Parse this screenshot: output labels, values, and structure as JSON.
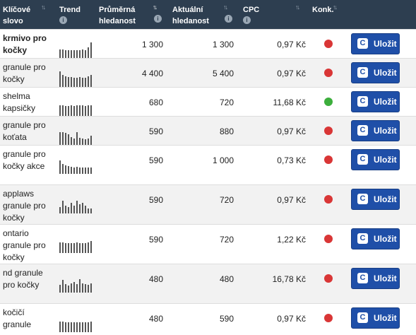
{
  "header": {
    "keyword": "Klíčové slovo",
    "trend": "Trend",
    "avg_search": "Průměrná hledanost",
    "cur_search": "Aktuální hledanost",
    "cpc": "CPC",
    "competition": "Konk.",
    "info_glyph": "i",
    "sort_idle": "↑↓",
    "sort_active": "↑↓"
  },
  "colors": {
    "header_bg": "#2d3e50",
    "button": "#1f4fa8",
    "red": "#d93636",
    "green": "#3cae3c"
  },
  "button_label": "Uložit",
  "button_icon": "c-icon",
  "rows": [
    {
      "keyword": "krmivo pro kočky",
      "bold": true,
      "avg": "1 300",
      "cur": "1 300",
      "cpc": "0,97 Kč",
      "competition": "red",
      "trend": [
        0.55,
        0.55,
        0.5,
        0.5,
        0.5,
        0.5,
        0.5,
        0.5,
        0.55,
        0.5,
        0.7,
        1.0
      ]
    },
    {
      "keyword": "granule pro kočky",
      "bold": false,
      "avg": "4 400",
      "cur": "5 400",
      "cpc": "0,97 Kč",
      "competition": "red",
      "trend": [
        1.0,
        0.75,
        0.7,
        0.65,
        0.65,
        0.6,
        0.6,
        0.65,
        0.6,
        0.6,
        0.7,
        0.75
      ]
    },
    {
      "keyword": "shelma kapsičky",
      "bold": false,
      "avg": "680",
      "cur": "720",
      "cpc": "11,68 Kč",
      "competition": "green",
      "trend": [
        0.7,
        0.7,
        0.65,
        0.65,
        0.7,
        0.65,
        0.7,
        0.7,
        0.7,
        0.65,
        0.7,
        0.7
      ]
    },
    {
      "keyword": "granule pro koťata",
      "bold": false,
      "avg": "590",
      "cur": "880",
      "cpc": "0,97 Kč",
      "competition": "red",
      "trend": [
        0.8,
        0.8,
        0.75,
        0.7,
        0.5,
        0.4,
        0.8,
        0.45,
        0.4,
        0.35,
        0.4,
        0.6
      ]
    },
    {
      "keyword": "granule pro kočky akce",
      "bold": false,
      "avg": "590",
      "cur": "1 000",
      "cpc": "0,73 Kč",
      "competition": "red",
      "trend": [
        0.85,
        0.65,
        0.55,
        0.5,
        0.45,
        0.4,
        0.45,
        0.4,
        0.4,
        0.4,
        0.4,
        0.4
      ]
    },
    {
      "keyword": "applaws granule pro kočky",
      "bold": false,
      "avg": "590",
      "cur": "720",
      "cpc": "0,97 Kč",
      "competition": "red",
      "trend": [
        0.4,
        0.8,
        0.5,
        0.4,
        0.7,
        0.5,
        0.8,
        0.6,
        0.7,
        0.5,
        0.3,
        0.3
      ]
    },
    {
      "keyword": "ontario granule pro kočky",
      "bold": false,
      "avg": "590",
      "cur": "720",
      "cpc": "1,22 Kč",
      "competition": "red",
      "trend": [
        0.7,
        0.7,
        0.65,
        0.65,
        0.65,
        0.65,
        0.7,
        0.65,
        0.65,
        0.65,
        0.7,
        0.75
      ]
    },
    {
      "keyword": "nd granule pro kočky",
      "bold": false,
      "avg": "480",
      "cur": "480",
      "cpc": "16,78 Kč",
      "competition": "red",
      "trend": [
        0.5,
        0.8,
        0.55,
        0.45,
        0.6,
        0.7,
        0.55,
        0.85,
        0.6,
        0.55,
        0.5,
        0.6
      ]
    },
    {
      "keyword": "kočičí granule",
      "bold": false,
      "avg": "480",
      "cur": "590",
      "cpc": "0,97 Kč",
      "competition": "red",
      "trend": [
        0.7,
        0.7,
        0.65,
        0.65,
        0.65,
        0.65,
        0.65,
        0.65,
        0.65,
        0.65,
        0.65,
        0.7
      ]
    }
  ]
}
